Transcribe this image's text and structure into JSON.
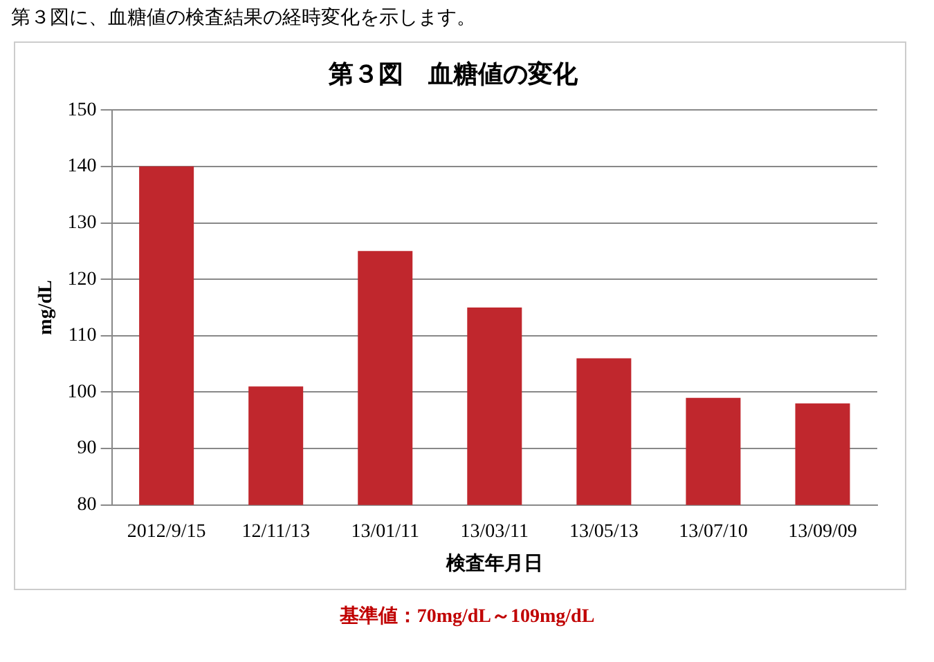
{
  "chart_data": {
    "type": "bar",
    "title": "第３図　血糖値の変化",
    "categories": [
      "2012/9/15",
      "12/11/13",
      "13/01/11",
      "13/03/11",
      "13/05/13",
      "13/07/10",
      "13/09/09"
    ],
    "values": [
      140,
      101,
      125,
      115,
      106,
      99,
      98
    ],
    "color": "#c0272d",
    "xlabel": "検査年月日",
    "ylabel": "mg/dL",
    "ylim": [
      80,
      150
    ],
    "yticks": [
      80,
      90,
      100,
      110,
      120,
      130,
      140,
      150
    ],
    "grid": "y",
    "legend": false,
    "annotations": [
      "第３図に、血糖値の検査結果の経時変化を示します。",
      "基準値：70mg/dL～109mg/dL"
    ]
  }
}
